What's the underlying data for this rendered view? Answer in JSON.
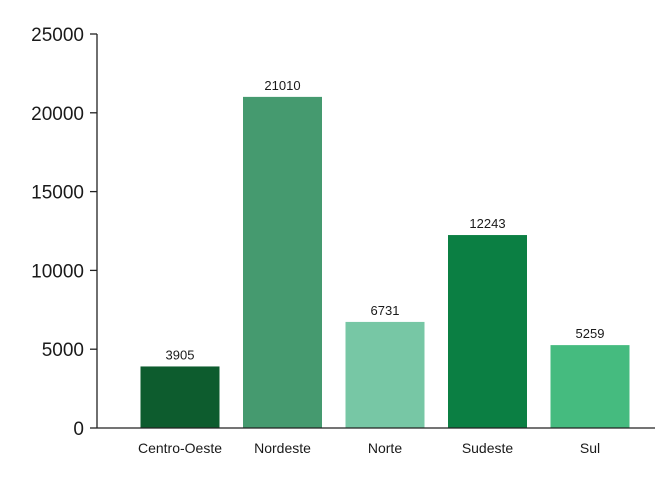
{
  "chart_data": {
    "type": "bar",
    "categories": [
      "Centro-Oeste",
      "Nordeste",
      "Norte",
      "Sudeste",
      "Sul"
    ],
    "values": [
      3905,
      21010,
      6731,
      12243,
      5259
    ],
    "data_labels": [
      "3905",
      "21010",
      "6731",
      "12243",
      "5259"
    ],
    "colors": [
      "#0d5c2e",
      "#459a6f",
      "#77c7a5",
      "#0b7f43",
      "#45bb7f"
    ],
    "ylim": [
      0,
      25000
    ],
    "yticks": [
      0,
      5000,
      10000,
      15000,
      20000,
      25000
    ],
    "ytick_labels": [
      "0",
      "5000",
      "10000",
      "15000",
      "20000",
      "25000"
    ],
    "title": "",
    "xlabel": "",
    "ylabel": "",
    "grid": false,
    "legend": "none"
  }
}
